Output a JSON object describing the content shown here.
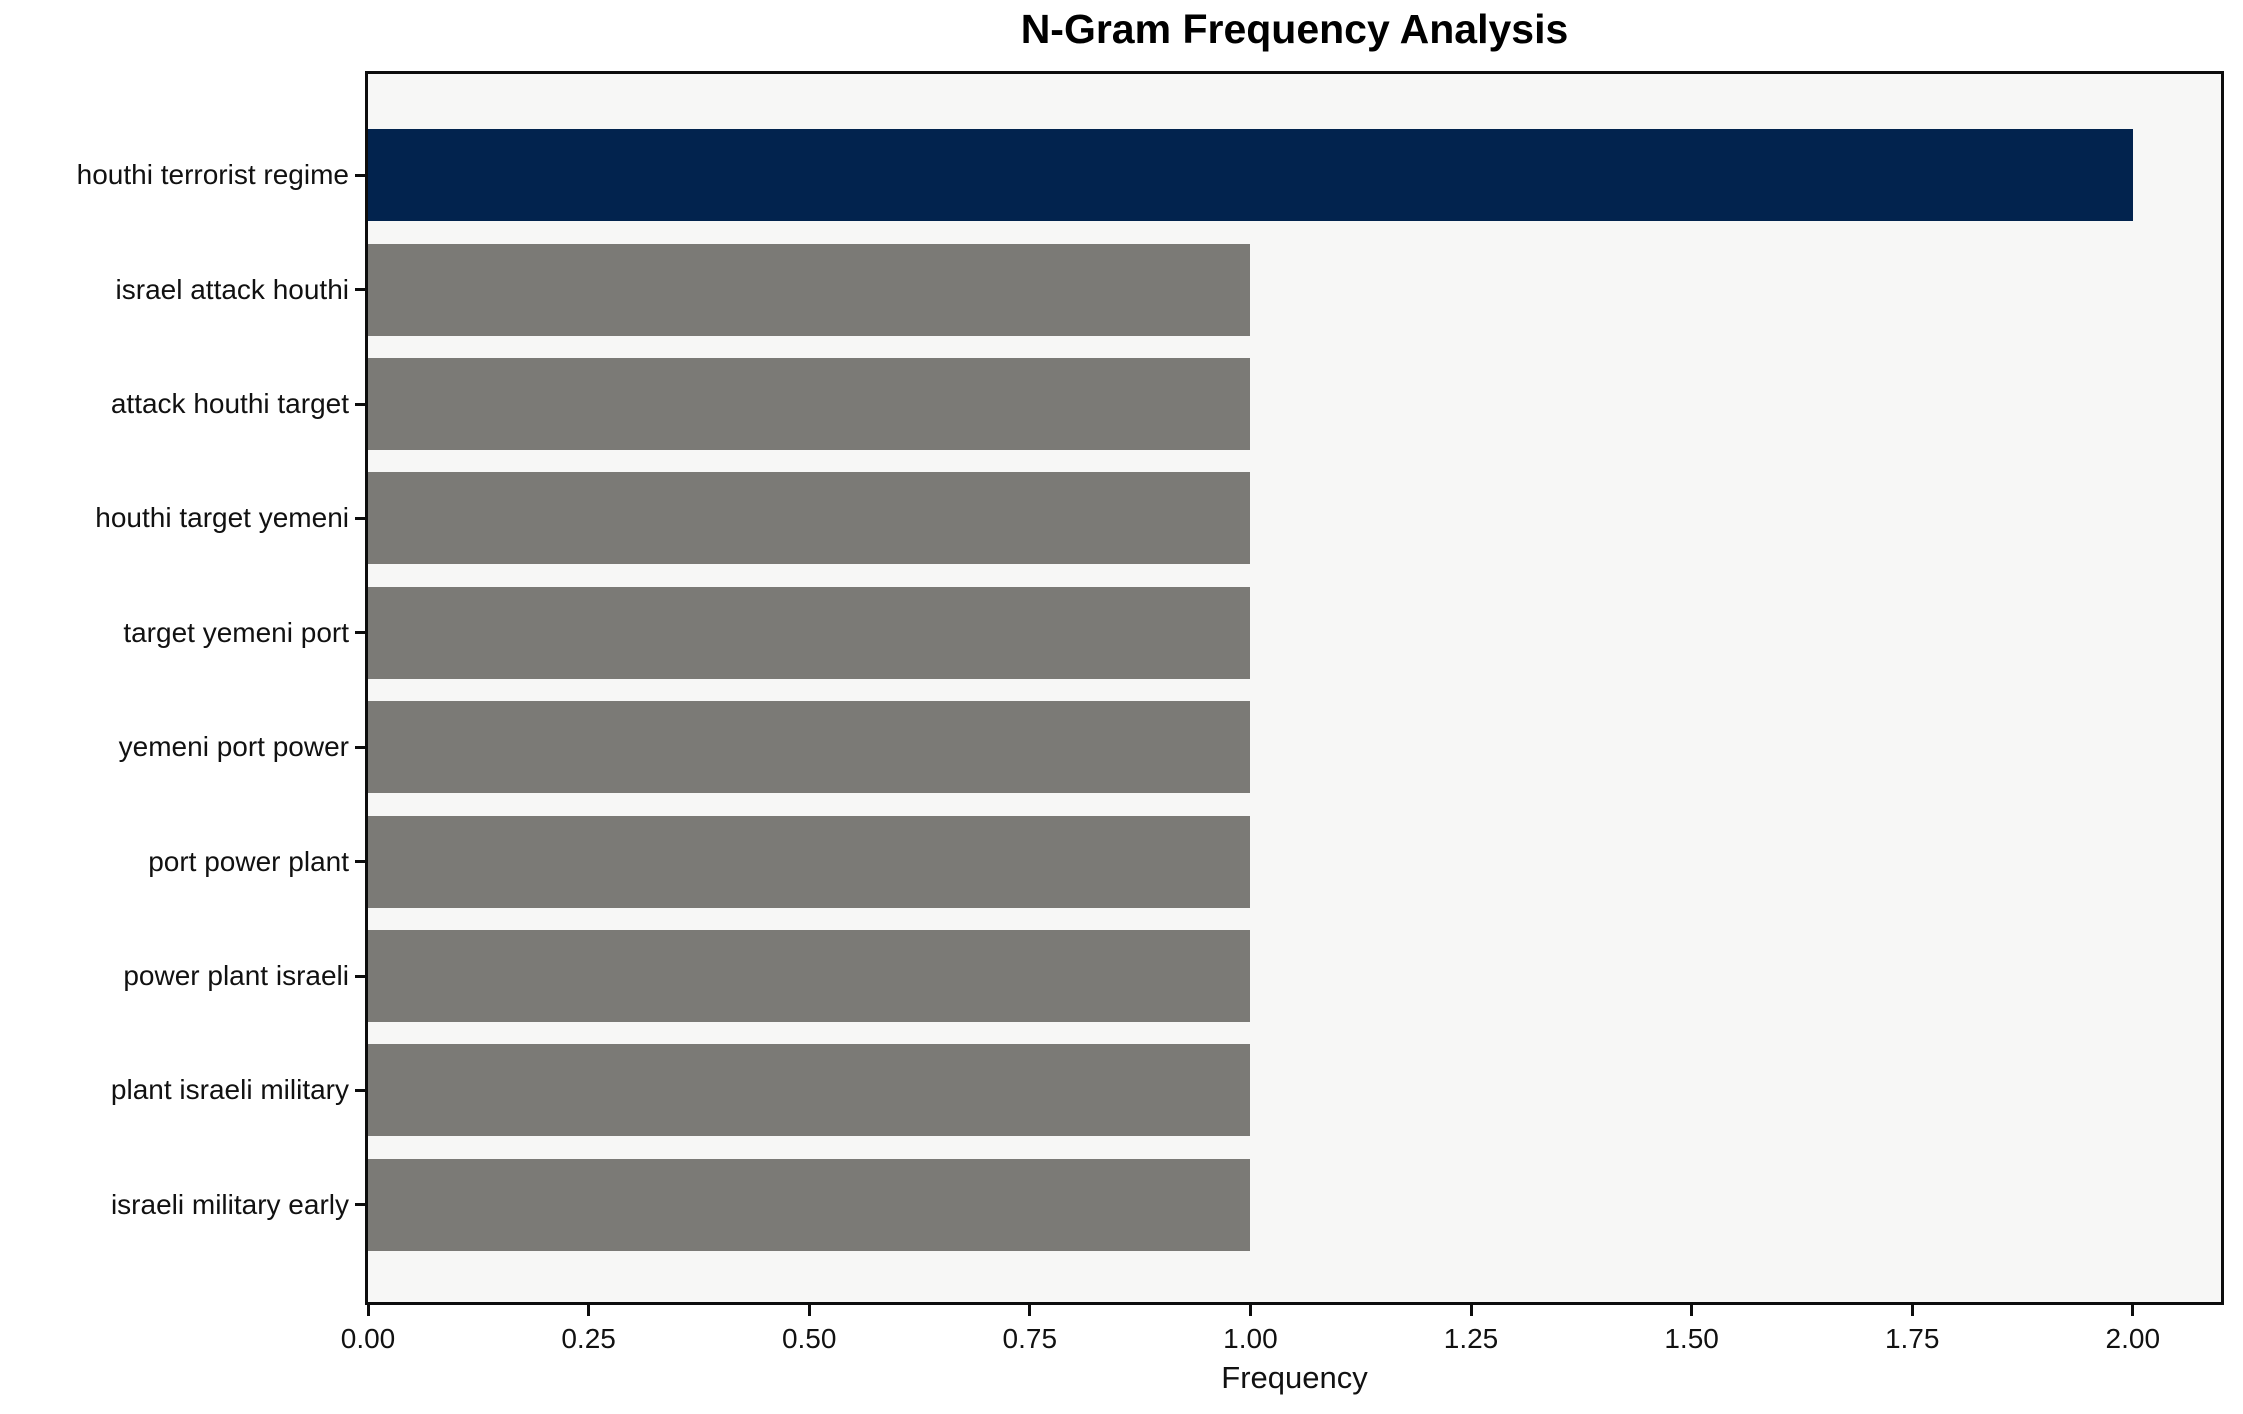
{
  "chart_data": {
    "type": "bar",
    "orientation": "horizontal",
    "title": "N-Gram Frequency Analysis",
    "xlabel": "Frequency",
    "ylabel": "",
    "categories": [
      "houthi terrorist regime",
      "israel attack houthi",
      "attack houthi target",
      "houthi target yemeni",
      "target yemeni port",
      "yemeni port power",
      "port power plant",
      "power plant israeli",
      "plant israeli military",
      "israeli military early"
    ],
    "values": [
      2,
      1,
      1,
      1,
      1,
      1,
      1,
      1,
      1,
      1
    ],
    "xlim": [
      0,
      2.1
    ],
    "xtick_values": [
      0,
      0.25,
      0.5,
      0.75,
      1.0,
      1.25,
      1.5,
      1.75,
      2.0
    ],
    "xtick_labels": [
      "0.00",
      "0.25",
      "0.50",
      "0.75",
      "1.00",
      "1.25",
      "1.50",
      "1.75",
      "2.00"
    ],
    "grid": false,
    "legend_position": "none",
    "colors": {
      "highlight_bar": "#02234e",
      "default_bar": "#7b7a76",
      "plot_background": "#f7f7f6",
      "figure_background": "#ffffff",
      "frame": "#0d0d0d",
      "text": "#111111"
    },
    "highlight_index": 0
  }
}
